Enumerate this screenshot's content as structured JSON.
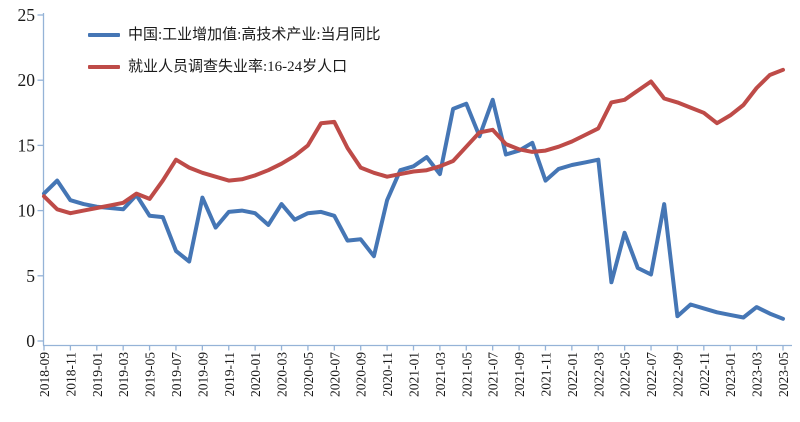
{
  "chart_data": {
    "type": "line",
    "title": "",
    "categories": [
      "2018-09",
      "2018-10",
      "2018-11",
      "2018-12",
      "2019-01",
      "2019-02",
      "2019-03",
      "2019-04",
      "2019-05",
      "2019-06",
      "2019-07",
      "2019-08",
      "2019-09",
      "2019-10",
      "2019-11",
      "2019-12",
      "2020-01",
      "2020-02",
      "2020-03",
      "2020-04",
      "2020-05",
      "2020-06",
      "2020-07",
      "2020-08",
      "2020-09",
      "2020-10",
      "2020-11",
      "2020-12",
      "2021-01",
      "2021-02",
      "2021-03",
      "2021-04",
      "2021-05",
      "2021-06",
      "2021-07",
      "2021-08",
      "2021-09",
      "2021-10",
      "2021-11",
      "2021-12",
      "2022-01",
      "2022-02",
      "2022-03",
      "2022-04",
      "2022-05",
      "2022-06",
      "2022-07",
      "2022-08",
      "2022-09",
      "2022-10",
      "2022-11",
      "2022-12",
      "2023-01",
      "2023-02",
      "2023-03",
      "2023-04",
      "2023-05"
    ],
    "x_tick_every": 2,
    "series": [
      {
        "name": "中国:工业增加值:高技术产业:当月同比",
        "color": "#4576B5",
        "values": [
          11.3,
          12.3,
          10.8,
          10.5,
          10.3,
          10.2,
          10.1,
          11.2,
          9.6,
          9.5,
          6.9,
          6.1,
          11.0,
          8.7,
          9.9,
          10.0,
          9.8,
          8.9,
          10.5,
          9.3,
          9.8,
          9.9,
          9.6,
          7.7,
          7.8,
          6.5,
          10.8,
          13.1,
          13.4,
          14.1,
          12.8,
          17.8,
          18.2,
          15.7,
          18.5,
          14.3,
          14.6,
          15.2,
          12.3,
          13.2,
          13.5,
          13.7,
          13.9,
          4.5,
          8.3,
          5.6,
          5.1,
          10.5,
          1.9,
          2.8,
          2.5,
          2.2,
          2.0,
          1.8,
          2.6,
          2.1,
          1.7
        ]
      },
      {
        "name": "就业人员调查失业率:16-24岁人口",
        "color": "#BE4B48",
        "values": [
          11.1,
          10.1,
          9.8,
          10.0,
          10.2,
          10.4,
          10.6,
          11.3,
          10.9,
          12.3,
          13.9,
          13.3,
          12.9,
          12.6,
          12.3,
          12.4,
          12.7,
          13.1,
          13.6,
          14.2,
          15.0,
          16.7,
          16.8,
          14.8,
          13.3,
          12.9,
          12.6,
          12.8,
          13.0,
          13.1,
          13.4,
          13.8,
          14.9,
          16.0,
          16.2,
          15.1,
          14.7,
          14.5,
          14.6,
          14.9,
          15.3,
          15.8,
          16.3,
          18.3,
          18.5,
          19.2,
          19.9,
          18.6,
          18.3,
          17.9,
          17.5,
          16.7,
          17.3,
          18.1,
          19.4,
          20.4,
          20.8
        ]
      }
    ],
    "ylim": [
      0,
      25
    ],
    "yticks": [
      0,
      5,
      10,
      15,
      20,
      25
    ],
    "grid": "off",
    "legend_position": "top-left",
    "axis_color": "#95B3D7",
    "tick_label_color": "#1a1a1a"
  }
}
